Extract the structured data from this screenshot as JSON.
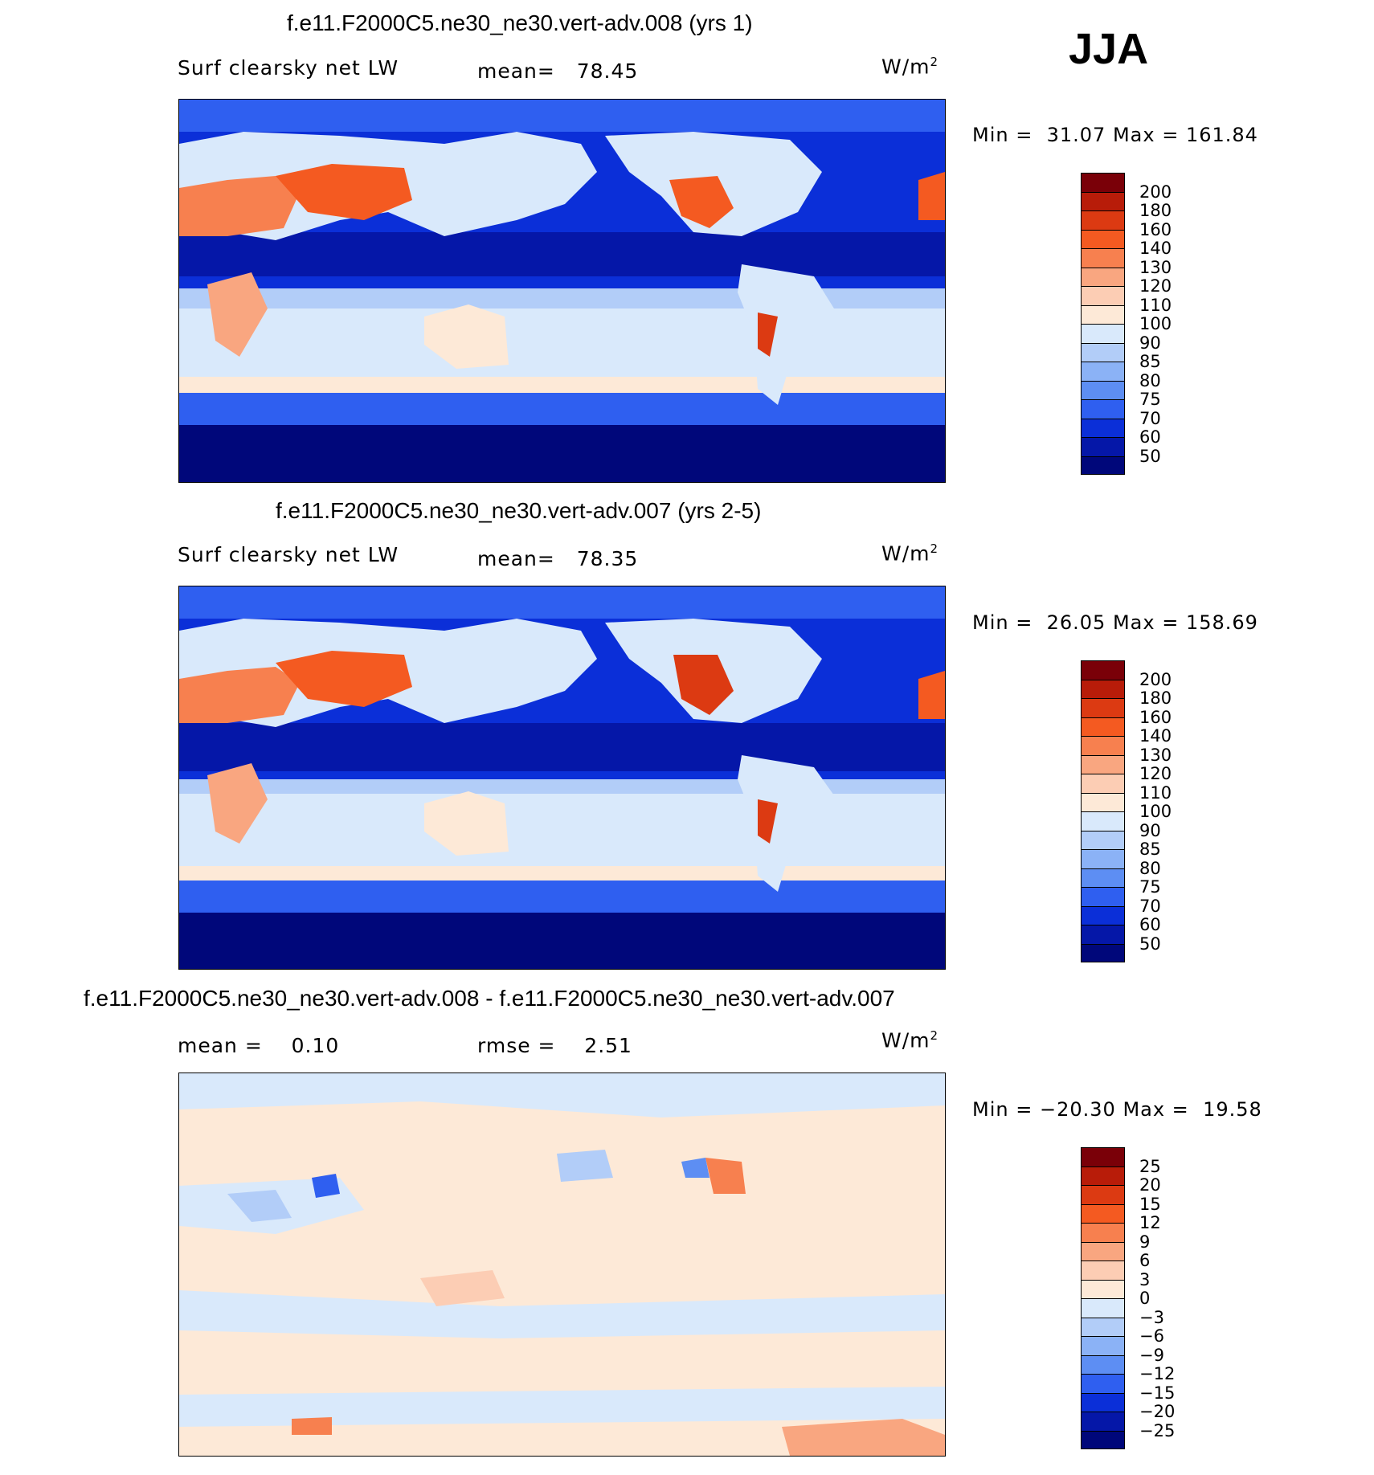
{
  "season": "JJA",
  "panels": [
    {
      "title": "f.e11.F2000C5.ne30_ne30.vert-adv.008 (yrs 1)",
      "left_label": "Surf clearsky net LW",
      "stat_label": "mean=",
      "stat_value": "78.45",
      "units": "W/m",
      "units_exp": "2",
      "min_label": "Min =",
      "min_value": "31.07",
      "max_label": "Max =",
      "max_value": "161.84",
      "colorbar": {
        "colors": [
          "#7a0008",
          "#b81c09",
          "#dc3a12",
          "#f45a21",
          "#f7804f",
          "#f9a680",
          "#fccdb4",
          "#fde9d7",
          "#d9e9fb",
          "#b2cdf8",
          "#8bb2f6",
          "#5d8ef3",
          "#2f5ff0",
          "#0b2fd8",
          "#0517a8",
          "#00077a"
        ],
        "labels": [
          "200",
          "180",
          "160",
          "140",
          "130",
          "120",
          "110",
          "100",
          "90",
          "85",
          "80",
          "75",
          "70",
          "60",
          "50"
        ]
      }
    },
    {
      "title": "f.e11.F2000C5.ne30_ne30.vert-adv.007 (yrs 2-5)",
      "left_label": "Surf clearsky net LW",
      "stat_label": "mean=",
      "stat_value": "78.35",
      "units": "W/m",
      "units_exp": "2",
      "min_label": "Min =",
      "min_value": "26.05",
      "max_label": "Max =",
      "max_value": "158.69",
      "colorbar": {
        "colors": [
          "#7a0008",
          "#b81c09",
          "#dc3a12",
          "#f45a21",
          "#f7804f",
          "#f9a680",
          "#fccdb4",
          "#fde9d7",
          "#d9e9fb",
          "#b2cdf8",
          "#8bb2f6",
          "#5d8ef3",
          "#2f5ff0",
          "#0b2fd8",
          "#0517a8",
          "#00077a"
        ],
        "labels": [
          "200",
          "180",
          "160",
          "140",
          "130",
          "120",
          "110",
          "100",
          "90",
          "85",
          "80",
          "75",
          "70",
          "60",
          "50"
        ]
      }
    },
    {
      "title": "f.e11.F2000C5.ne30_ne30.vert-adv.008 - f.e11.F2000C5.ne30_ne30.vert-adv.007",
      "left_label": "mean =",
      "left_value": "0.10",
      "stat_label": "rmse =",
      "stat_value": "2.51",
      "units": "W/m",
      "units_exp": "2",
      "min_label": "Min =",
      "min_value": "−20.30",
      "max_label": "Max =",
      "max_value": "19.58",
      "colorbar": {
        "colors": [
          "#7a0008",
          "#b81c09",
          "#dc3a12",
          "#f45a21",
          "#f7804f",
          "#f9a680",
          "#fccdb4",
          "#fde9d7",
          "#d9e9fb",
          "#b2cdf8",
          "#8bb2f6",
          "#5d8ef3",
          "#2f5ff0",
          "#0b2fd8",
          "#0517a8",
          "#00077a"
        ],
        "labels": [
          "25",
          "20",
          "15",
          "12",
          "9",
          "6",
          "3",
          "0",
          "−3",
          "−6",
          "−9",
          "−12",
          "−15",
          "−20",
          "−25"
        ]
      }
    }
  ],
  "chart_data": [
    {
      "type": "heatmap",
      "title": "f.e11.F2000C5.ne30_ne30.vert-adv.008 (yrs 1)",
      "variable": "Surf clearsky net LW",
      "units": "W/m2",
      "mean": 78.45,
      "min": 31.07,
      "max": 161.84,
      "levels": [
        50,
        60,
        70,
        75,
        80,
        85,
        90,
        100,
        110,
        120,
        130,
        140,
        160,
        180,
        200
      ]
    },
    {
      "type": "heatmap",
      "title": "f.e11.F2000C5.ne30_ne30.vert-adv.007 (yrs 2-5)",
      "variable": "Surf clearsky net LW",
      "units": "W/m2",
      "mean": 78.35,
      "min": 26.05,
      "max": 158.69,
      "levels": [
        50,
        60,
        70,
        75,
        80,
        85,
        90,
        100,
        110,
        120,
        130,
        140,
        160,
        180,
        200
      ]
    },
    {
      "type": "heatmap",
      "title": "f.e11.F2000C5.ne30_ne30.vert-adv.008 - f.e11.F2000C5.ne30_ne30.vert-adv.007",
      "units": "W/m2",
      "mean": 0.1,
      "rmse": 2.51,
      "min": -20.3,
      "max": 19.58,
      "levels": [
        -25,
        -20,
        -15,
        -12,
        -9,
        -6,
        -3,
        0,
        3,
        6,
        9,
        12,
        15,
        20,
        25
      ]
    }
  ]
}
